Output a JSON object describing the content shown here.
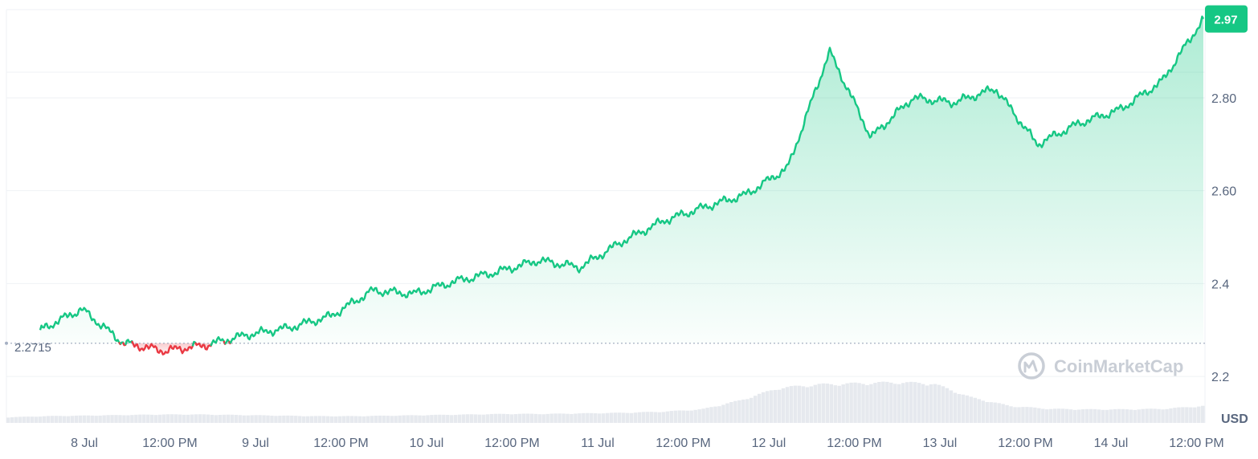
{
  "chart_data": {
    "type": "area",
    "x": [
      "7 Jul 23:00",
      "8 Jul 05:00",
      "8 Jul 11:00",
      "8 Jul 17:00",
      "8 Jul 23:00",
      "9 Jul 05:00",
      "9 Jul 11:00",
      "9 Jul 17:00",
      "10 Jul 00:00",
      "10 Jul 06:00",
      "10 Jul 12:00",
      "10 Jul 18:00",
      "11 Jul 00:00",
      "11 Jul 06:00",
      "11 Jul 12:00",
      "11 Jul 16:00",
      "11 Jul 19:00",
      "12 Jul 00:00",
      "12 Jul 06:00",
      "12 Jul 11:00",
      "12 Jul 16:00",
      "13 Jul 00:00",
      "13 Jul 06:00",
      "13 Jul 12:00",
      "13 Jul 18:00",
      "14 Jul 00:00",
      "14 Jul 06:00",
      "14 Jul 12:00",
      "14 Jul 15:00"
    ],
    "series": [
      {
        "values": [
          2.3,
          2.345,
          2.272,
          2.255,
          2.268,
          2.29,
          2.305,
          2.33,
          2.385,
          2.378,
          2.405,
          2.425,
          2.45,
          2.435,
          2.49,
          2.535,
          2.565,
          2.592,
          2.65,
          2.9,
          2.715,
          2.8,
          2.79,
          2.82,
          2.7,
          2.745,
          2.775,
          2.835,
          2.97
        ]
      }
    ],
    "reference_value": 2.2715,
    "reference_label": "2.2715",
    "current_value": 2.97,
    "current_label": "2.97",
    "y_ticks": [
      "2.2",
      "2.4",
      "2.60",
      "2.80"
    ],
    "y_tick_values": [
      2.2,
      2.4,
      2.6,
      2.8
    ],
    "x_ticks": [
      "8 Jul",
      "12:00 PM",
      "9 Jul",
      "12:00 PM",
      "10 Jul",
      "12:00 PM",
      "11 Jul",
      "12:00 PM",
      "12 Jul",
      "12:00 PM",
      "13 Jul",
      "12:00 PM",
      "14 Jul",
      "12:00 PM"
    ],
    "ylim": [
      2.1,
      2.99
    ],
    "unit": "USD",
    "grid": true,
    "volume_relative": [
      0.1,
      0.12,
      0.13,
      0.14,
      0.15,
      0.15,
      0.14,
      0.13,
      0.12,
      0.12,
      0.13,
      0.14,
      0.15,
      0.16,
      0.16,
      0.17,
      0.18,
      0.2,
      0.24,
      0.4,
      0.62,
      0.68,
      0.7,
      0.72,
      0.7,
      0.45,
      0.3,
      0.25,
      0.24,
      0.24,
      0.25,
      0.3
    ],
    "colors": {
      "up": "#16c784",
      "down": "#ea3943",
      "grid": "#eff2f5",
      "axis_text": "#58667e",
      "volume": "#e6e9ee",
      "reference_line": "#a6b0c3"
    },
    "watermark": "CoinMarketCap"
  }
}
